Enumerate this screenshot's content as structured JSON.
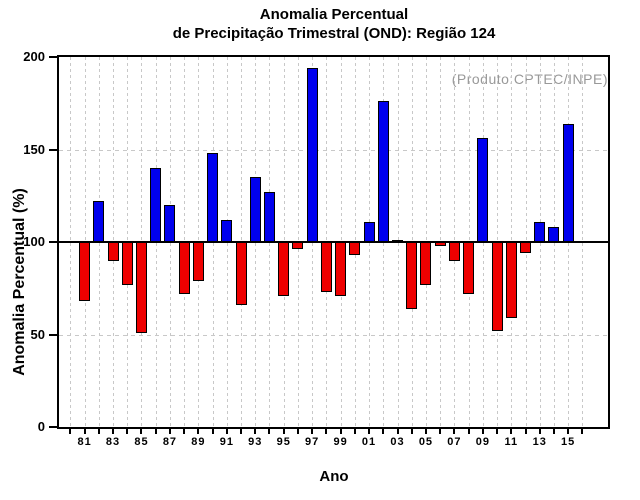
{
  "title": {
    "line1": "Anomalia Percentual",
    "line2": "de Precipitação Trimestral (OND): Região 124"
  },
  "annotation": {
    "text": "(Produto:CPTEC/INPE)",
    "color": "#999999"
  },
  "axes": {
    "y_label": "Anomalia Percentual (%)",
    "x_label": "Ano",
    "y_ticks": [
      0,
      50,
      100,
      150,
      200
    ],
    "x_tick_labels": [
      "81",
      "83",
      "85",
      "87",
      "89",
      "91",
      "93",
      "95",
      "97",
      "99",
      "01",
      "03",
      "05",
      "07",
      "09",
      "11",
      "13",
      "15"
    ]
  },
  "chart_data": {
    "type": "bar",
    "title": "Anomalia Percentual de Precipitação Trimestral (OND): Região 124",
    "xlabel": "Ano",
    "ylabel": "Anomalia Percentual (%)",
    "x": [
      1981,
      1982,
      1983,
      1984,
      1985,
      1986,
      1987,
      1988,
      1989,
      1990,
      1991,
      1992,
      1993,
      1994,
      1995,
      1996,
      1997,
      1998,
      1999,
      2000,
      2001,
      2002,
      2003,
      2004,
      2005,
      2006,
      2007,
      2008,
      2009,
      2010,
      2011,
      2012,
      2013,
      2014,
      2015
    ],
    "values": [
      68,
      122,
      90,
      77,
      51,
      140,
      120,
      72,
      79,
      148,
      112,
      66,
      135,
      127,
      71,
      96,
      194,
      73,
      71,
      93,
      111,
      176,
      101,
      64,
      77,
      98,
      90,
      72,
      156,
      52,
      59,
      94,
      111,
      108,
      164
    ],
    "baseline": 100,
    "ylim": [
      0,
      200
    ],
    "xlim": [
      1979.2,
      2017.8
    ],
    "grid": true,
    "legend_position": "none",
    "colors": {
      "above_baseline": "#0000ee",
      "below_baseline": "#ee0000",
      "grid": "#c8c8c8",
      "baseline": "#000000"
    }
  }
}
